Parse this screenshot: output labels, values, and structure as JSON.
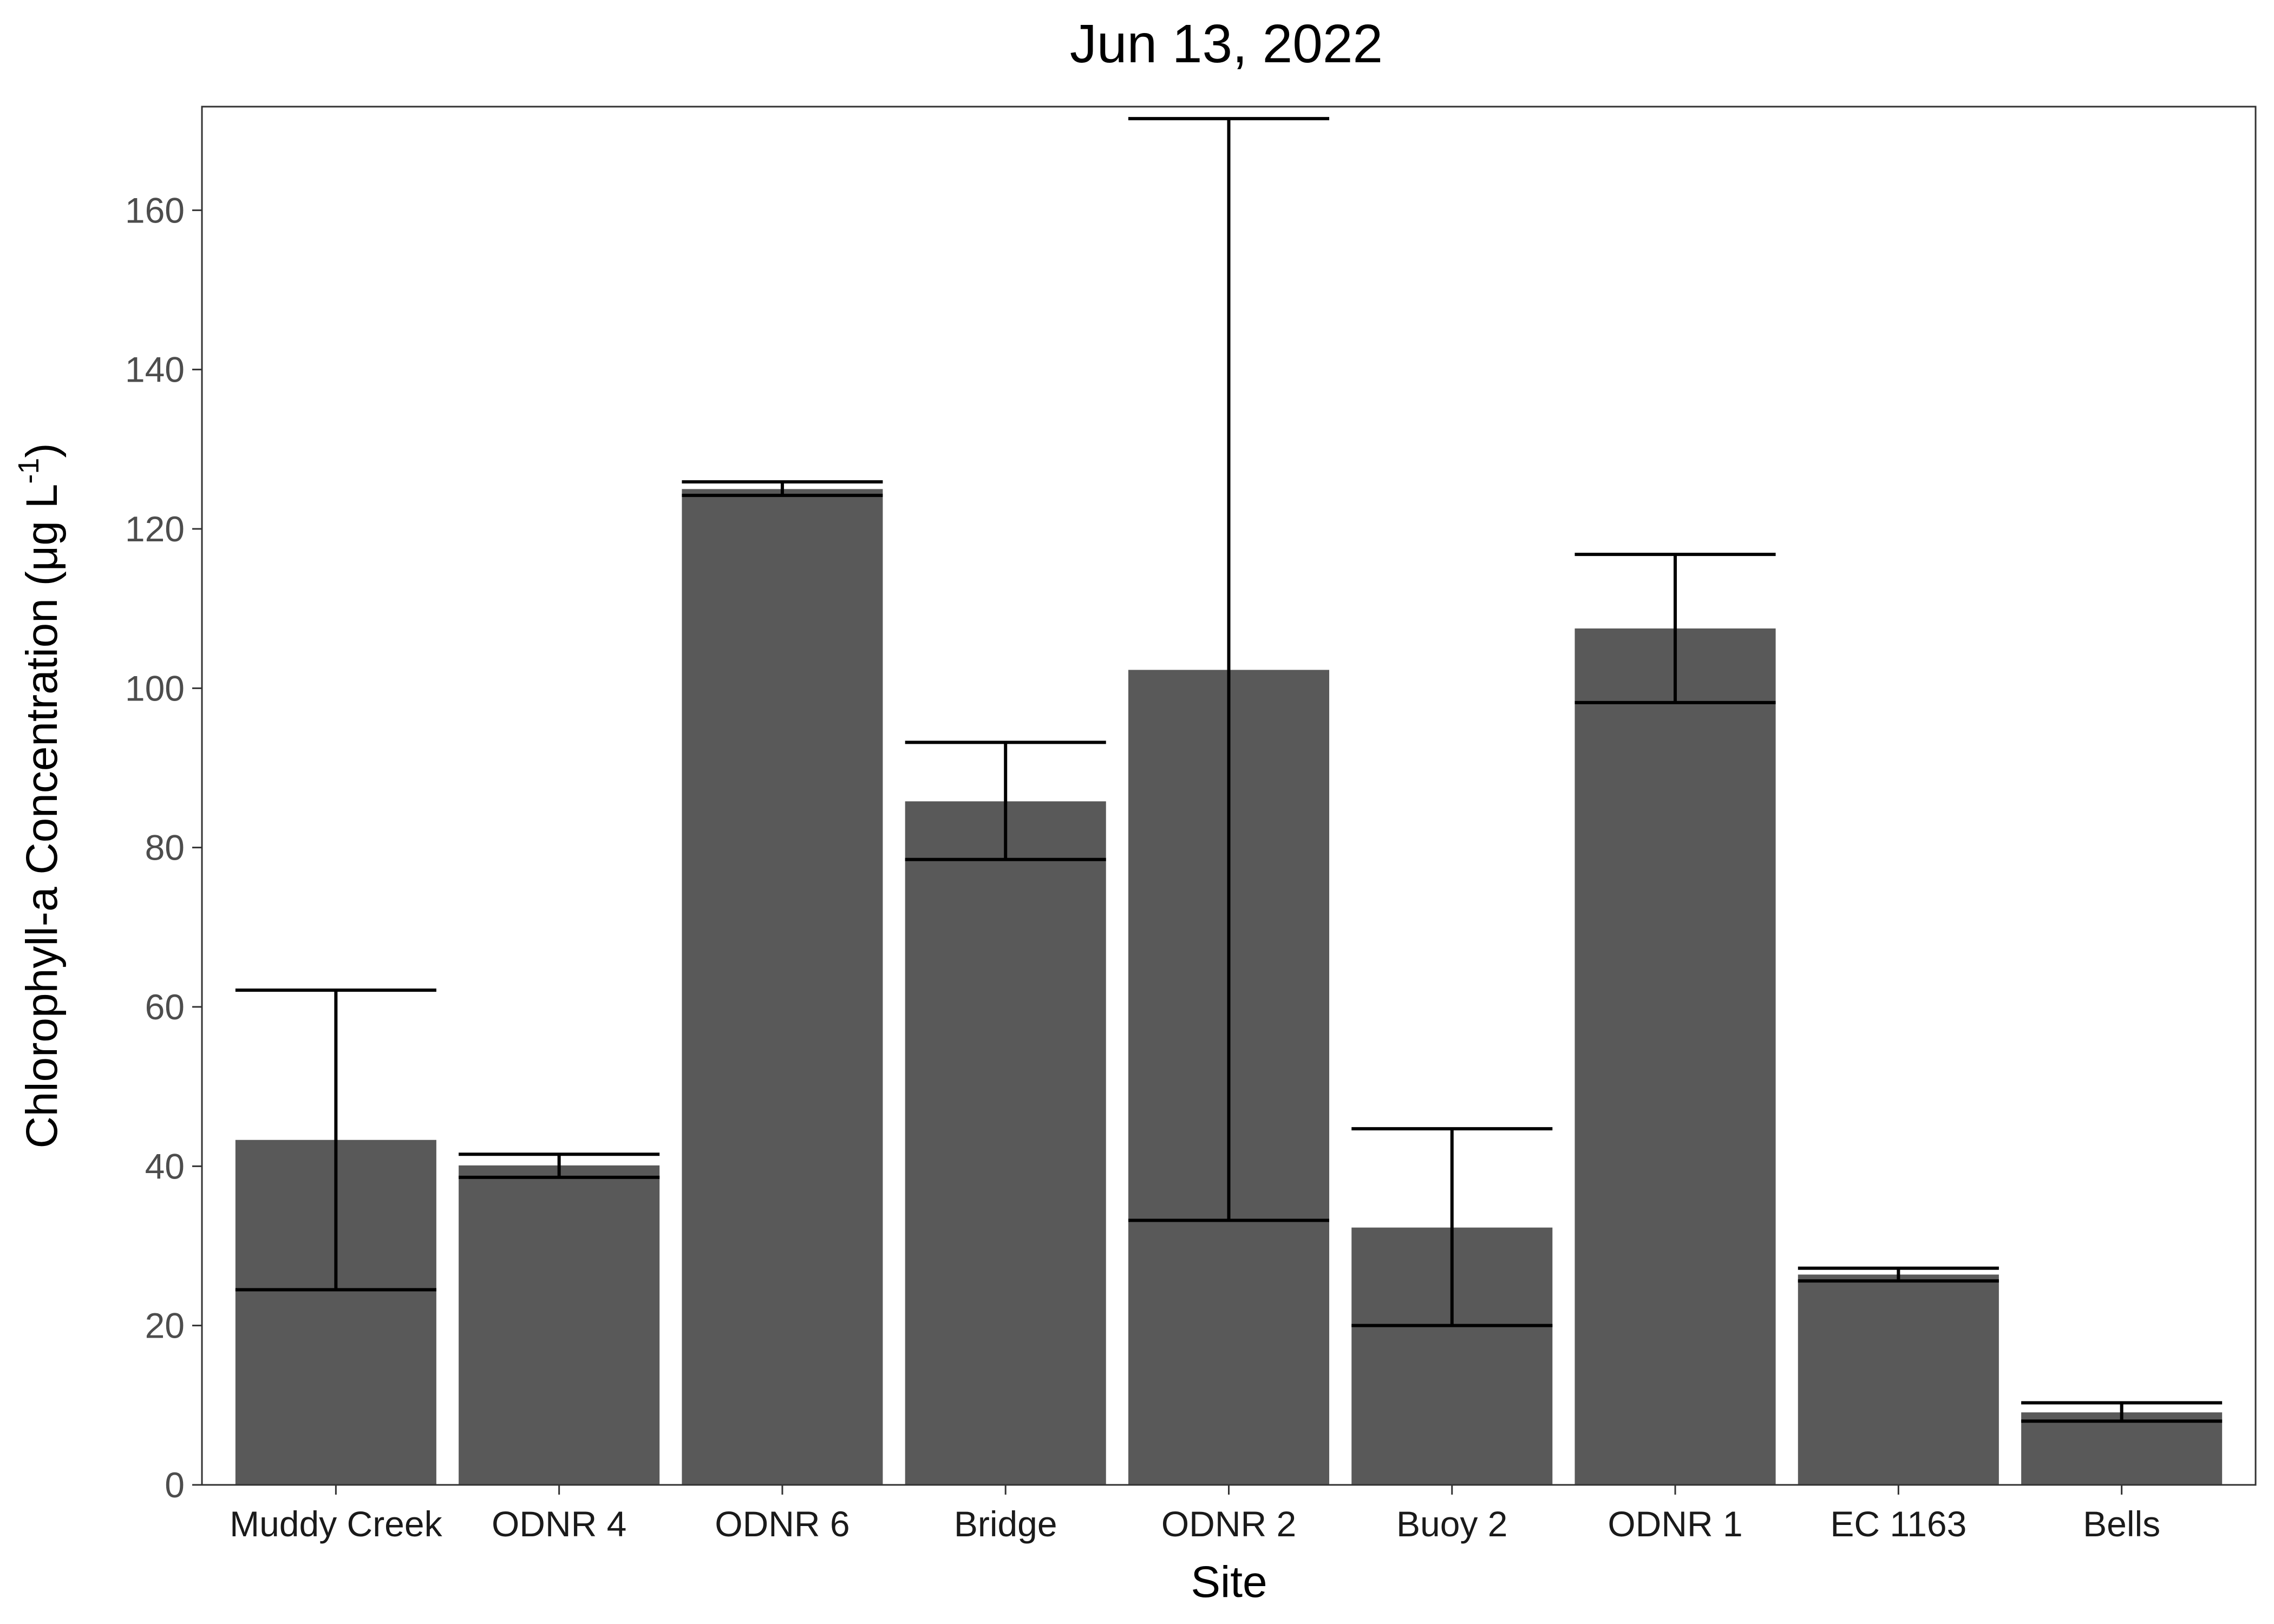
{
  "chart_data": {
    "type": "bar",
    "title": "Jun 13, 2022",
    "xlabel": "Site",
    "ylabel": {
      "main": "Chlorophyll-a Concentration (μg L",
      "superscript": "-1",
      "close": ")"
    },
    "categories": [
      "Muddy Creek",
      "ODNR 4",
      "ODNR 6",
      "Bridge",
      "ODNR 2",
      "Buoy 2",
      "ODNR 1",
      "EC 1163",
      "Bells"
    ],
    "values": [
      43.3,
      40.1,
      125.0,
      85.8,
      102.3,
      32.3,
      107.5,
      26.4,
      9.1
    ],
    "error_low": [
      24.5,
      38.6,
      124.2,
      78.5,
      33.2,
      20.0,
      98.2,
      25.6,
      8.0
    ],
    "error_high": [
      62.1,
      41.5,
      125.9,
      93.2,
      171.5,
      44.7,
      116.8,
      27.2,
      10.3
    ],
    "yticks": [
      0,
      20,
      40,
      60,
      80,
      100,
      120,
      140,
      160
    ],
    "ylim": [
      0,
      173
    ],
    "grid": false,
    "legend": "none",
    "colors": {
      "bar": "#595959",
      "error_bar": "#000000",
      "axis": "#333333"
    }
  }
}
